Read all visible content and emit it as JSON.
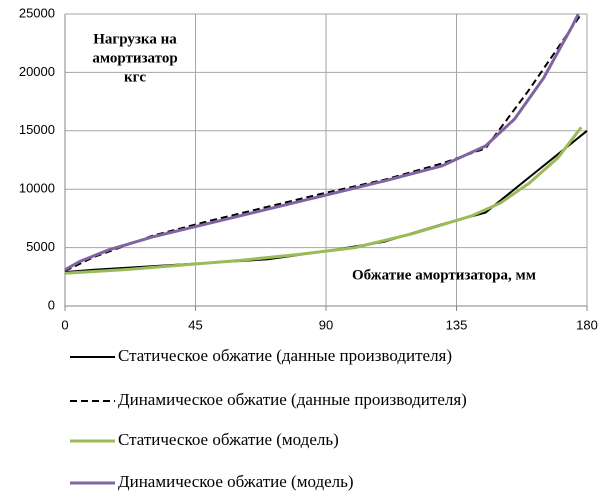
{
  "chart_data": {
    "type": "line",
    "ylabel": [
      "Нагрузка на",
      "амортизатор",
      "кгс"
    ],
    "xlabel": "Обжатие амортизатора,  мм",
    "xlim": [
      0,
      180
    ],
    "xticks": [
      0,
      45,
      90,
      135,
      180
    ],
    "ylim": [
      0,
      25000
    ],
    "yticks": [
      0,
      5000,
      10000,
      15000,
      20000,
      25000
    ],
    "grid": true,
    "series": [
      {
        "name": "Статическое обжатие (данные производителя)",
        "color": "#000000",
        "dash": false,
        "x": [
          0,
          10,
          20,
          30,
          50,
          70,
          90,
          110,
          130,
          145,
          160,
          180
        ],
        "values": [
          2900,
          3100,
          3250,
          3400,
          3700,
          4000,
          4700,
          5500,
          7000,
          8000,
          11000,
          15000
        ]
      },
      {
        "name": "Динамическое обжатие (данные производителя)",
        "color": "#000000",
        "dash": true,
        "x": [
          0,
          10,
          20,
          30,
          50,
          70,
          90,
          110,
          130,
          145,
          160,
          178
        ],
        "values": [
          3000,
          4200,
          5100,
          6000,
          7300,
          8500,
          9700,
          10800,
          12200,
          13500,
          18500,
          25000
        ]
      },
      {
        "name": "Статическое обжатие (модель)",
        "color": "#9bbb59",
        "dash": false,
        "x": [
          0,
          20,
          40,
          60,
          80,
          100,
          120,
          140,
          150,
          160,
          170,
          178
        ],
        "values": [
          2800,
          3100,
          3500,
          3900,
          4400,
          5000,
          6200,
          7700,
          8800,
          10500,
          12700,
          15300
        ]
      },
      {
        "name": "Динамическое обжатие (модель)",
        "color": "#8064a2",
        "dash": false,
        "x": [
          0,
          5,
          15,
          30,
          50,
          70,
          90,
          110,
          130,
          145,
          155,
          165,
          175,
          177
        ],
        "values": [
          3100,
          3800,
          4800,
          5900,
          7100,
          8300,
          9500,
          10700,
          12000,
          13700,
          16000,
          19500,
          24000,
          25000
        ]
      }
    ]
  }
}
